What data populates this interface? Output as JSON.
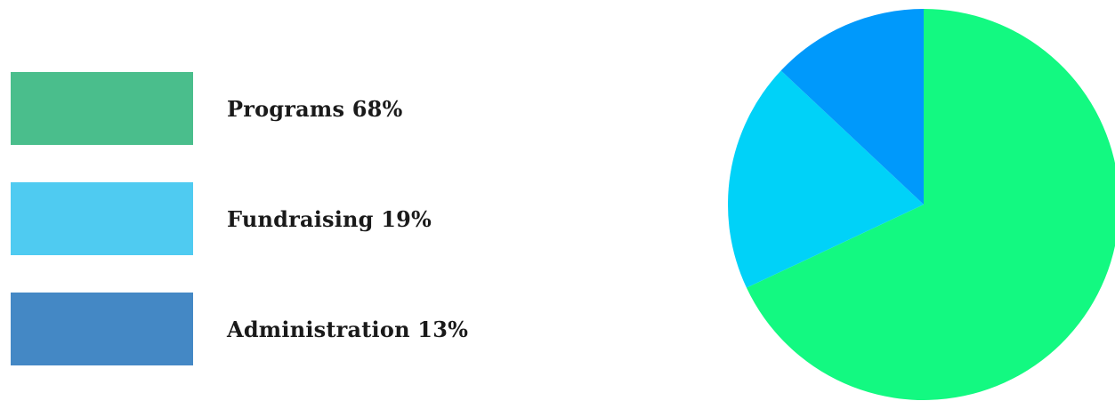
{
  "chart_data": {
    "type": "pie",
    "title": "",
    "legend_position": "left",
    "slices": [
      {
        "label": "Programs 68%",
        "name": "Programs",
        "value": 68,
        "pie_color": "#13F981",
        "legend_color": "#4ABE8C"
      },
      {
        "label": "Fundraising 19%",
        "name": "Fundraising",
        "value": 19,
        "pie_color": "#00D2F8",
        "legend_color": "#4FCBF1"
      },
      {
        "label": "Administration 13%",
        "name": "Administration",
        "value": 13,
        "pie_color": "#0099FB",
        "legend_color": "#4488C5"
      }
    ]
  }
}
